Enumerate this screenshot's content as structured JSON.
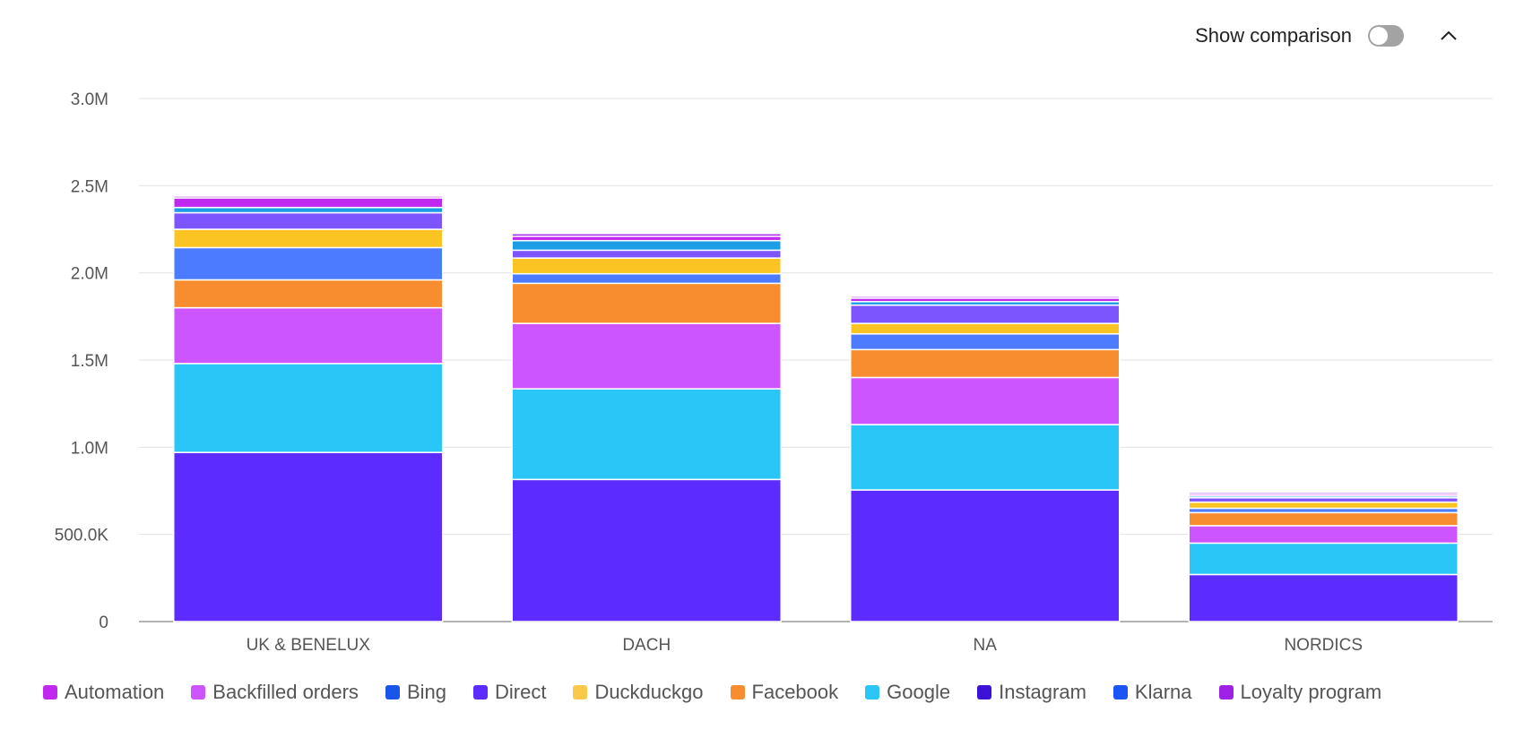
{
  "controls": {
    "comparison_label": "Show comparison",
    "comparison_on": false
  },
  "colors": {
    "gridline": "#e3e3e3",
    "axis": "#999999",
    "tick_text": "#555555"
  },
  "chart_data": {
    "type": "bar",
    "stacked": true,
    "categories": [
      "UK & BENELUX",
      "DACH",
      "NA",
      "NORDICS"
    ],
    "ylim": [
      0,
      3000000
    ],
    "yticks": [
      0,
      500000,
      1000000,
      1500000,
      2000000,
      2500000,
      3000000
    ],
    "ytick_labels": [
      "0",
      "500.0K",
      "1.0M",
      "1.5M",
      "2.0M",
      "2.5M",
      "3.0M"
    ],
    "grid": true,
    "legend_position": "bottom",
    "series": [
      {
        "name": "Direct",
        "color": "#5b2bff",
        "values": [
          970000,
          815000,
          755000,
          270000
        ]
      },
      {
        "name": "Google",
        "color": "#29c6f7",
        "values": [
          510000,
          520000,
          375000,
          180000
        ]
      },
      {
        "name": "Backfilled orders",
        "color": "#cc55ff",
        "values": [
          320000,
          375000,
          270000,
          100000
        ]
      },
      {
        "name": "Facebook",
        "color": "#f78d2e",
        "values": [
          160000,
          230000,
          160000,
          75000
        ]
      },
      {
        "name": "Klarna",
        "color": "#4d7bff",
        "values": [
          185000,
          55000,
          90000,
          25000
        ]
      },
      {
        "name": "Duckduckgo",
        "color": "#fbc423",
        "values": [
          105000,
          90000,
          60000,
          35000
        ]
      },
      {
        "name": "Instagram",
        "color": "#7d55ff",
        "values": [
          95000,
          45000,
          105000,
          25000
        ]
      },
      {
        "name": "Bing",
        "color": "#1c9ee6",
        "values": [
          30000,
          55000,
          20000,
          10000
        ]
      },
      {
        "name": "Automation",
        "color": "#c028f0",
        "values": [
          55000,
          25000,
          20000,
          10000
        ]
      },
      {
        "name": "Loyalty program",
        "color": "#a020e8",
        "values": [
          10000,
          15000,
          10000,
          10000
        ]
      }
    ],
    "legend": [
      {
        "name": "Automation",
        "color": "#c028f0"
      },
      {
        "name": "Backfilled orders",
        "color": "#cc55ff"
      },
      {
        "name": "Bing",
        "color": "#1955e8"
      },
      {
        "name": "Direct",
        "color": "#5b2bff"
      },
      {
        "name": "Duckduckgo",
        "color": "#fbc94a"
      },
      {
        "name": "Facebook",
        "color": "#f78d2e"
      },
      {
        "name": "Google",
        "color": "#29c6f7"
      },
      {
        "name": "Instagram",
        "color": "#3b12d6"
      },
      {
        "name": "Klarna",
        "color": "#1c55f5"
      },
      {
        "name": "Loyalty program",
        "color": "#a020e8"
      }
    ]
  }
}
